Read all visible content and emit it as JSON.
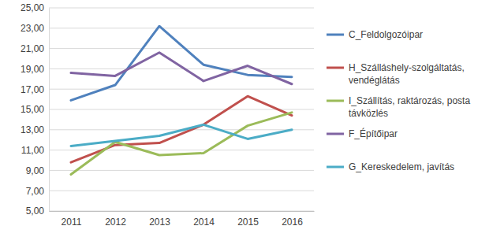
{
  "chart_data": {
    "type": "line",
    "categories": [
      "2011",
      "2012",
      "2013",
      "2014",
      "2015",
      "2016"
    ],
    "series": [
      {
        "name": "C_Feldolgozóipar",
        "color": "#4f81bd",
        "values": [
          15.9,
          17.4,
          23.2,
          19.4,
          18.4,
          18.2
        ]
      },
      {
        "name": "H_Szálláshely-szolgáltatás, vendéglátás",
        "color": "#c0504d",
        "values": [
          9.8,
          11.5,
          11.7,
          13.5,
          16.3,
          14.4
        ]
      },
      {
        "name": "I_Szállítás, raktározás, posta távközlés",
        "color": "#9bbb59",
        "values": [
          8.6,
          11.8,
          10.5,
          10.7,
          13.4,
          14.7
        ]
      },
      {
        "name": "F_Építőipar",
        "color": "#8064a2",
        "values": [
          18.6,
          18.3,
          20.6,
          17.8,
          19.3,
          17.5
        ]
      },
      {
        "name": "G_Kereskedelem, javítás",
        "color": "#4bacc6",
        "values": [
          11.4,
          11.9,
          12.4,
          13.5,
          12.1,
          13.0
        ]
      }
    ],
    "ylim": [
      5,
      25
    ],
    "yticks": [
      {
        "value": 5,
        "label": "5,00"
      },
      {
        "value": 7,
        "label": "7,00"
      },
      {
        "value": 9,
        "label": "9,00"
      },
      {
        "value": 11,
        "label": "11,00"
      },
      {
        "value": 13,
        "label": "13,00"
      },
      {
        "value": 15,
        "label": "15,00"
      },
      {
        "value": 17,
        "label": "17,00"
      },
      {
        "value": 19,
        "label": "19,00"
      },
      {
        "value": 21,
        "label": "21,00"
      },
      {
        "value": 23,
        "label": "23,00"
      },
      {
        "value": 25,
        "label": "25,00"
      }
    ],
    "grid": true,
    "legend": "right"
  }
}
